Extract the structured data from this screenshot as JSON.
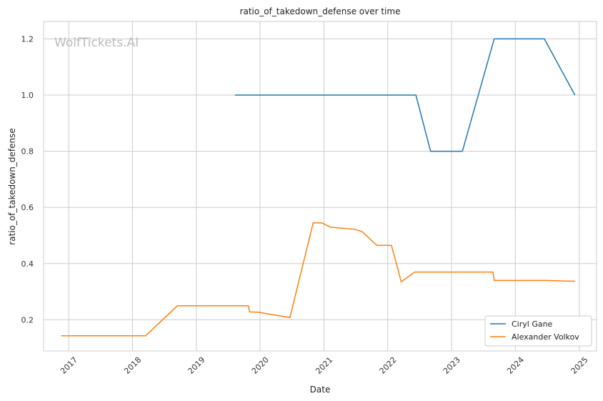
{
  "watermark": "WolfTickets.AI",
  "chart_data": {
    "type": "line",
    "title": "ratio_of_takedown_defense over time",
    "xlabel": "Date",
    "ylabel": "ratio_of_takedown_defense",
    "x_ticks": [
      "2017",
      "2018",
      "2019",
      "2020",
      "2021",
      "2022",
      "2023",
      "2024",
      "2025"
    ],
    "y_ticks": [
      "0.2",
      "0.4",
      "0.6",
      "0.8",
      "1.0",
      "1.2"
    ],
    "xlim": [
      "2016-08-10",
      "2025-04-10"
    ],
    "ylim": [
      0.089,
      1.262
    ],
    "grid": true,
    "legend_position": "lower-right",
    "series": [
      {
        "name": "Ciryl Gane",
        "color": "#1f77b4",
        "points": [
          [
            "2019-08-10",
            1.0
          ],
          [
            "2022-06-11",
            1.0
          ],
          [
            "2022-09-03",
            0.8
          ],
          [
            "2023-03-04",
            0.8
          ],
          [
            "2023-09-02",
            1.2
          ],
          [
            "2024-06-15",
            1.2
          ],
          [
            "2024-12-07",
            1.0
          ]
        ]
      },
      {
        "name": "Alexander Volkov",
        "color": "#ff7f0e",
        "points": [
          [
            "2016-11-19",
            0.143
          ],
          [
            "2018-03-17",
            0.143
          ],
          [
            "2018-09-15",
            0.25
          ],
          [
            "2019-10-26",
            0.25
          ],
          [
            "2019-11-02",
            0.228
          ],
          [
            "2019-12-21",
            0.227
          ],
          [
            "2020-06-20",
            0.208
          ],
          [
            "2020-10-31",
            0.545
          ],
          [
            "2020-12-19",
            0.545
          ],
          [
            "2021-02-06",
            0.53
          ],
          [
            "2021-06-26",
            0.522
          ],
          [
            "2021-08-07",
            0.514
          ],
          [
            "2021-10-30",
            0.465
          ],
          [
            "2022-01-22",
            0.465
          ],
          [
            "2022-03-19",
            0.335
          ],
          [
            "2022-06-04",
            0.37
          ],
          [
            "2023-08-26",
            0.37
          ],
          [
            "2023-09-02",
            0.34
          ],
          [
            "2024-06-22",
            0.34
          ],
          [
            "2024-12-07",
            0.337
          ]
        ]
      }
    ]
  }
}
